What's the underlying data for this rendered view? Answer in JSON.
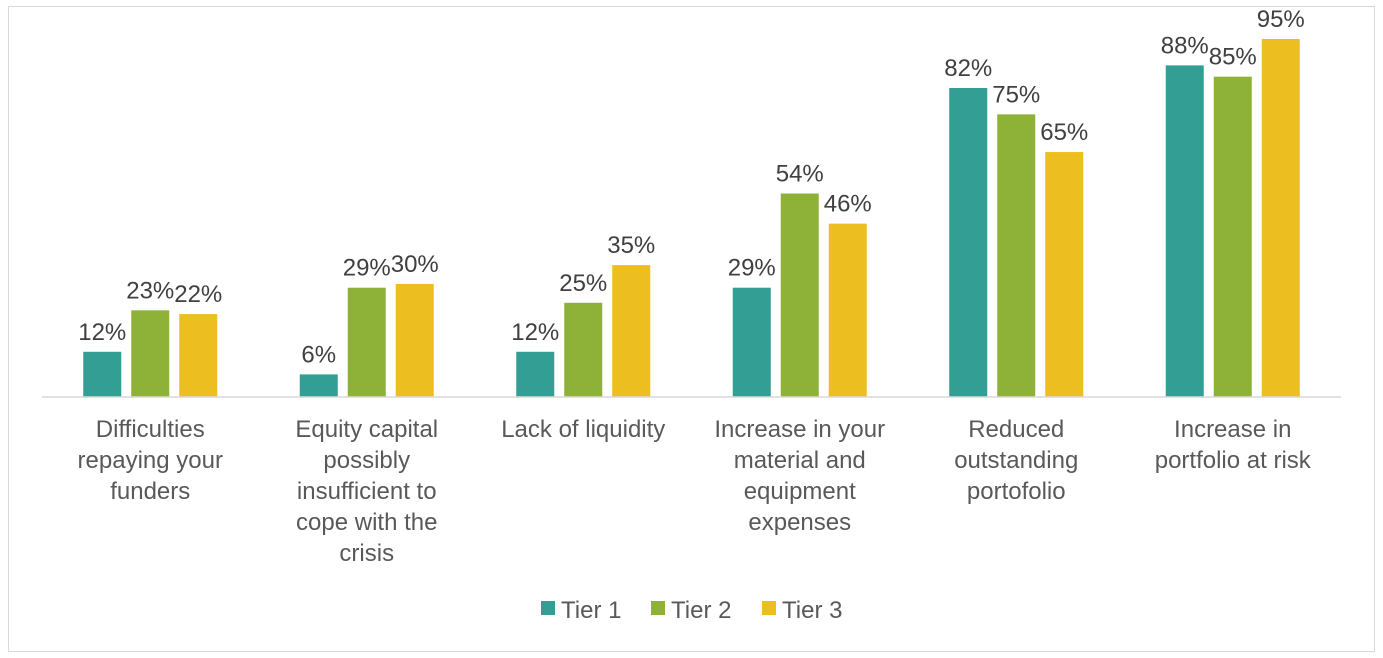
{
  "chart_data": {
    "type": "bar",
    "categories": [
      [
        "Difficulties",
        "repaying your",
        "funders"
      ],
      [
        "Equity capital",
        "possibly",
        "insufficient to",
        "cope with the",
        "crisis"
      ],
      [
        "Lack of liquidity"
      ],
      [
        "Increase in your",
        "material and",
        "equipment",
        "expenses"
      ],
      [
        "Reduced",
        "outstanding",
        "portofolio"
      ],
      [
        "Increase in",
        "portfolio at risk"
      ]
    ],
    "series": [
      {
        "name": "Tier 1",
        "color": "#339E94",
        "values": [
          12,
          6,
          12,
          29,
          82,
          88
        ],
        "labels": [
          "12%",
          "6%",
          "12%",
          "29%",
          "82%",
          "88%"
        ]
      },
      {
        "name": "Tier 2",
        "color": "#8DB237",
        "values": [
          23,
          29,
          25,
          54,
          75,
          85
        ],
        "labels": [
          "23%",
          "29%",
          "25%",
          "54%",
          "75%",
          "85%"
        ]
      },
      {
        "name": "Tier 3",
        "color": "#EDBE20",
        "values": [
          22,
          30,
          35,
          46,
          65,
          95
        ],
        "labels": [
          "22%",
          "30%",
          "35%",
          "46%",
          "65%",
          "95%"
        ]
      }
    ],
    "ylim": [
      0,
      100
    ],
    "grid": false,
    "legend": "bottom",
    "title": "",
    "xlabel": "",
    "ylabel": ""
  }
}
